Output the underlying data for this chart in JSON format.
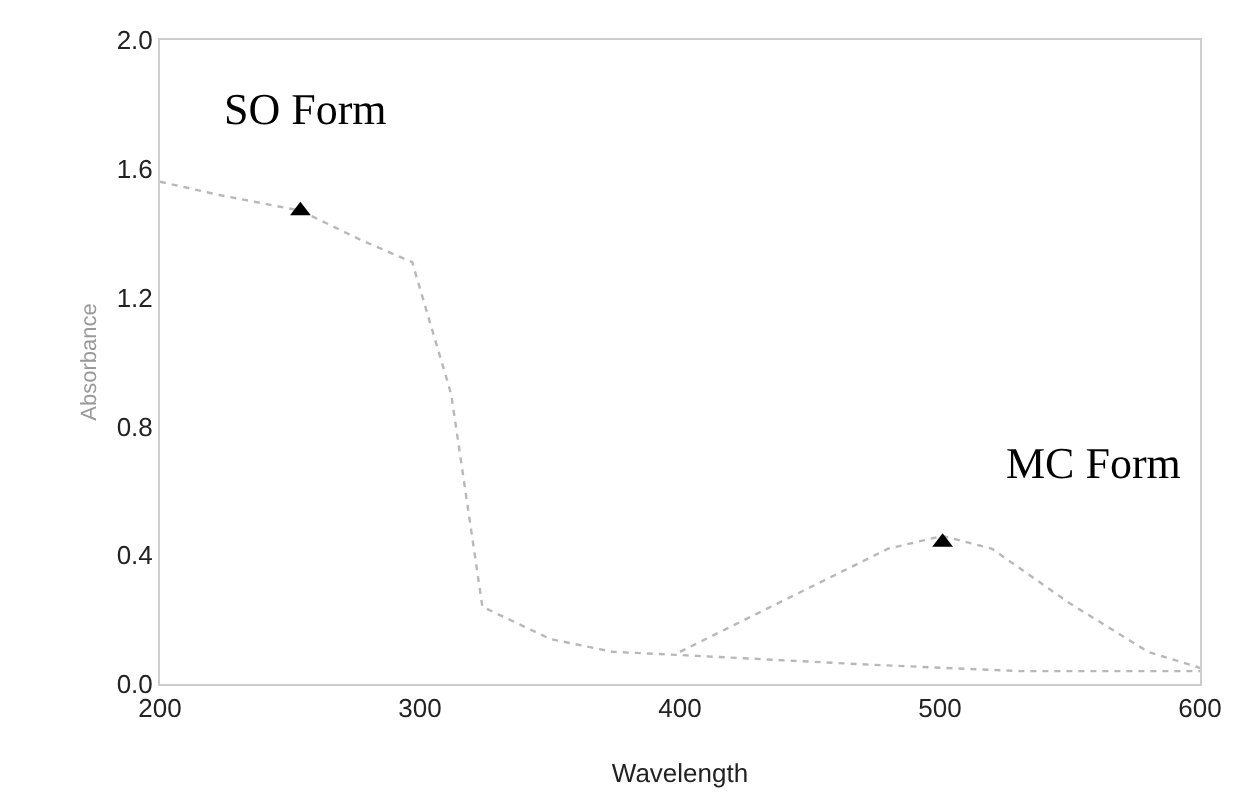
{
  "chart_data": {
    "type": "line",
    "xlabel": "Wavelength",
    "ylabel": "Absorbance",
    "xlim": [
      200,
      600
    ],
    "xticks": [
      200,
      300,
      400,
      500,
      600
    ],
    "ylim": [
      0,
      2
    ],
    "yticks": [
      {
        "value": 0,
        "label": "0.0"
      },
      {
        "value": 0.4,
        "label": "0.4"
      },
      {
        "value": 0.8,
        "label": "0.8"
      },
      {
        "value": 1.2,
        "label": "1.2"
      },
      {
        "value": 1.6,
        "label": "1.6"
      },
      {
        "value": 2,
        "label": "2.0"
      }
    ],
    "grid": false,
    "legend": false,
    "line_style": "dotted",
    "marker": "none",
    "series": [
      {
        "name": "SO Form",
        "color": "#b8b8b8",
        "x": [
          200,
          222,
          254,
          277,
          297,
          312,
          324,
          350,
          374,
          400,
          473,
          531,
          556,
          600
        ],
        "values": [
          1.56,
          1.52,
          1.47,
          1.38,
          1.31,
          0.9,
          0.24,
          0.14,
          0.1,
          0.09,
          0.06,
          0.04,
          0.04,
          0.04
        ]
      },
      {
        "name": "MC Form",
        "color": "#b8b8b8",
        "x": [
          400,
          450,
          480,
          501,
          520,
          550,
          580,
          600
        ],
        "values": [
          0.1,
          0.3,
          0.42,
          0.46,
          0.42,
          0.25,
          0.1,
          0.05
        ]
      },
      {
        "type": "scatter",
        "marker": "triangle",
        "color": "#000000",
        "x": [
          254,
          501
        ],
        "values": [
          1.47,
          0.44
        ]
      }
    ]
  }
}
